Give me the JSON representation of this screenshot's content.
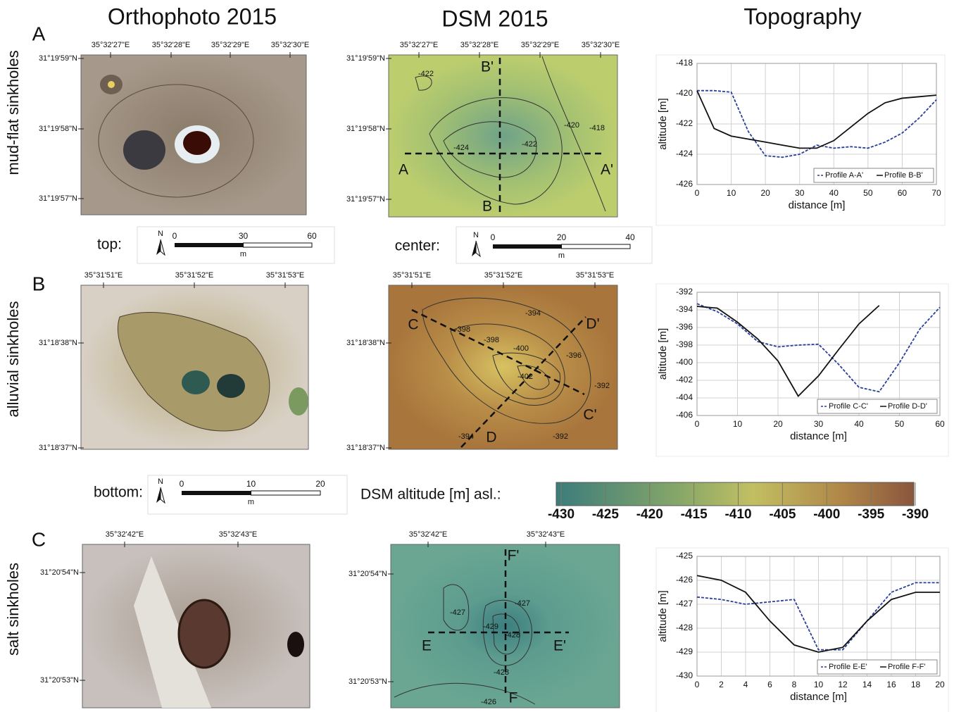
{
  "titles": [
    "Orthophoto 2015",
    "DSM 2015",
    "Topography"
  ],
  "rows": [
    {
      "letter": "A",
      "label": "mud-flat sinkholes",
      "orthophoto": {
        "xticks": [
          "35°32'27\"E",
          "35°32'28\"E",
          "35°32'29\"E",
          "35°32'30\"E"
        ],
        "yticks": [
          "31°19'59\"N",
          "31°19'58\"N",
          "31°19'57\"N"
        ]
      },
      "dsm": {
        "xticks": [
          "35°32'27\"E",
          "35°32'28\"E",
          "35°32'29\"E",
          "35°32'30\"E"
        ],
        "yticks": [
          "31°19'59\"N",
          "31°19'58\"N",
          "31°19'57\"N"
        ],
        "contour_labels": [
          "-422",
          "-424",
          "-422",
          "-420",
          "-418"
        ],
        "profile_labels": [
          "A",
          "A'",
          "B",
          "B'"
        ]
      }
    },
    {
      "letter": "B",
      "label": "alluvial sinkholes",
      "orthophoto": {
        "xticks": [
          "35°31'51\"E",
          "35°31'52\"E",
          "35°31'53\"E"
        ],
        "yticks": [
          "31°18'38\"N",
          "31°18'37\"N"
        ]
      },
      "dsm": {
        "xticks": [
          "35°31'51\"E",
          "35°31'52\"E",
          "35°31'53\"E"
        ],
        "yticks": [
          "31°18'38\"N",
          "31°18'37\"N"
        ],
        "contour_labels": [
          "-394",
          "-398",
          "-398",
          "-400",
          "-396",
          "-402",
          "-392",
          "-394",
          "-392"
        ],
        "profile_labels": [
          "C",
          "C'",
          "D",
          "D'"
        ]
      }
    },
    {
      "letter": "C",
      "label": "salt sinkholes",
      "orthophoto": {
        "xticks": [
          "35°32'42\"E",
          "35°32'43\"E"
        ],
        "yticks": [
          "31°20'54\"N",
          "31°20'53\"N"
        ]
      },
      "dsm": {
        "xticks": [
          "35°32'42\"E",
          "35°32'43\"E"
        ],
        "yticks": [
          "31°20'54\"N",
          "31°20'53\"N"
        ],
        "contour_labels": [
          "-427",
          "-427",
          "-429",
          "-428",
          "-428",
          "-426"
        ],
        "profile_labels": [
          "E",
          "E'",
          "F",
          "F'"
        ]
      }
    }
  ],
  "scale_bars": [
    {
      "label": "top:",
      "north": "N",
      "ticks": [
        0,
        30,
        60
      ],
      "unit": "m"
    },
    {
      "label": "center:",
      "north": "N",
      "ticks": [
        0,
        20,
        40
      ],
      "unit": "m"
    },
    {
      "label": "bottom:",
      "north": "N",
      "ticks": [
        0,
        10,
        20
      ],
      "unit": "m"
    }
  ],
  "colorbar": {
    "label": "DSM altitude [m] asl.:",
    "ticks": [
      -430,
      -425,
      -420,
      -415,
      -410,
      -405,
      -400,
      -395,
      -390
    ]
  },
  "chart_data": [
    {
      "type": "line",
      "xlabel": "distance [m]",
      "ylabel": "altitude [m]",
      "grid": true,
      "legend": "lower right",
      "x": [
        0,
        5,
        10,
        15,
        20,
        25,
        30,
        35,
        40,
        45,
        50,
        55,
        60,
        65,
        70
      ],
      "xlim": [
        0,
        70
      ],
      "xticks": [
        0,
        10,
        20,
        30,
        40,
        50,
        60,
        70
      ],
      "ylim": [
        -426,
        -418
      ],
      "yticks": [
        -426,
        -424,
        -422,
        -420,
        -418
      ],
      "series": [
        {
          "name": "Profile A-A'",
          "color": "#2a3f9a",
          "style": "dashed",
          "values": [
            -419.8,
            -419.8,
            -419.9,
            -422.5,
            -424.1,
            -424.2,
            -424.0,
            -423.4,
            -423.6,
            -423.5,
            -423.6,
            -423.2,
            -422.6,
            -421.6,
            -420.4
          ]
        },
        {
          "name": "Profile B-B'",
          "color": "#111111",
          "style": "solid",
          "values": [
            -419.8,
            -422.3,
            -422.8,
            -423.0,
            -423.2,
            -423.4,
            -423.6,
            -423.6,
            -423.1,
            -422.2,
            -421.3,
            -420.6,
            -420.3,
            -420.2,
            -420.1
          ]
        }
      ]
    },
    {
      "type": "line",
      "xlabel": "distance [m]",
      "ylabel": "altitude [m]",
      "grid": true,
      "legend": "lower right",
      "x": [
        0,
        5,
        10,
        15,
        20,
        25,
        30,
        35,
        40,
        45,
        50,
        55,
        60
      ],
      "xlim": [
        0,
        60
      ],
      "xticks": [
        0,
        10,
        20,
        30,
        40,
        50,
        60
      ],
      "ylim": [
        -406,
        -392
      ],
      "yticks": [
        -406,
        -404,
        -402,
        -400,
        -398,
        -396,
        -394,
        -392
      ],
      "series": [
        {
          "name": "Profile C-C'",
          "color": "#2a3f9a",
          "style": "dashed",
          "values": [
            -393.3,
            -394.2,
            -395.6,
            -397.6,
            -398.2,
            -398.0,
            -397.9,
            -400.2,
            -402.8,
            -403.3,
            -400.0,
            -396.2,
            -393.7
          ]
        },
        {
          "name": "Profile D-D'",
          "color": "#111111",
          "style": "solid",
          "values": [
            -393.6,
            -393.8,
            -395.4,
            -397.3,
            -399.8,
            -403.8,
            -401.5,
            -398.5,
            -395.6,
            -393.5,
            null,
            null,
            null
          ]
        }
      ]
    },
    {
      "type": "line",
      "xlabel": "distance [m]",
      "ylabel": "altitude [m]",
      "grid": true,
      "legend": "lower right",
      "x": [
        0,
        2,
        4,
        6,
        8,
        10,
        12,
        14,
        16,
        18,
        20
      ],
      "xlim": [
        0,
        20
      ],
      "xticks": [
        0,
        2,
        4,
        6,
        8,
        10,
        12,
        14,
        16,
        18,
        20
      ],
      "ylim": [
        -430,
        -425
      ],
      "yticks": [
        -430,
        -429,
        -428,
        -427,
        -426,
        -425
      ],
      "series": [
        {
          "name": "Profile E-E'",
          "color": "#2a3f9a",
          "style": "dashed",
          "values": [
            -426.7,
            -426.8,
            -427.0,
            -426.9,
            -426.8,
            -428.9,
            -428.9,
            -427.7,
            -426.5,
            -426.1,
            -426.1
          ]
        },
        {
          "name": "Profile F-F'",
          "color": "#111111",
          "style": "solid",
          "values": [
            -425.8,
            -426.0,
            -426.5,
            -427.7,
            -428.7,
            -429.0,
            -428.8,
            -427.7,
            -426.8,
            -426.5,
            -426.5
          ]
        }
      ]
    }
  ]
}
